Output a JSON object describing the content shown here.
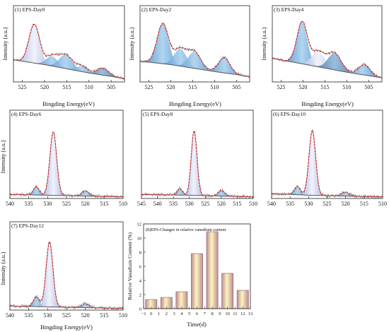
{
  "figure": {
    "colors": {
      "raw": "#8a8a8a",
      "fit": "#d42020",
      "background": "#555555",
      "peak_main": "#b8c0e6",
      "peak_sub": "#5d9fd3",
      "peak_sub2": "#4f88b8",
      "bar_top": "#f8f3b0",
      "bar_mid": "#e9c0c8",
      "bar_dark": "#c08c9a"
    }
  },
  "chart_data": [
    {
      "type": "line",
      "title": "(1) EPS-Day0",
      "xlabel": "Bingding Energy(eV)",
      "ylabel": "Intensity (a.u.)",
      "xlim": [
        527,
        502
      ],
      "x_ticks": [
        525,
        520,
        515,
        510,
        505
      ],
      "background": [
        [
          527,
          0.32
        ],
        [
          520,
          0.25
        ],
        [
          510,
          0.13
        ],
        [
          502,
          0.05
        ]
      ],
      "peaks": [
        {
          "center": 522.3,
          "height": 0.56,
          "width": 1.2,
          "color": "peak_main"
        },
        {
          "center": 518.3,
          "height": 0.14,
          "width": 1.3,
          "color": "peak_sub"
        },
        {
          "center": 515.2,
          "height": 0.2,
          "width": 1.5,
          "color": "peak_sub"
        },
        {
          "center": 511.5,
          "height": 0.08,
          "width": 1.2,
          "color": "peak_sub"
        },
        {
          "center": 506.8,
          "height": 0.1,
          "width": 1.3,
          "color": "peak_sub2"
        }
      ]
    },
    {
      "type": "line",
      "title": "(2) EPS-Day2",
      "xlabel": "Bingding Energy(eV)",
      "ylabel": "Intensity (a.u.)",
      "xlim": [
        527,
        502
      ],
      "x_ticks": [
        525,
        520,
        515,
        510,
        505
      ],
      "background": [
        [
          527,
          0.3
        ],
        [
          520,
          0.25
        ],
        [
          510,
          0.15
        ],
        [
          502,
          0.08
        ]
      ],
      "peaks": [
        {
          "center": 521.8,
          "height": 0.58,
          "width": 1.3,
          "color": "peak_sub"
        },
        {
          "center": 517.8,
          "height": 0.25,
          "width": 1.4,
          "color": "peak_sub"
        },
        {
          "center": 514.6,
          "height": 0.24,
          "width": 1.4,
          "color": "peak_sub"
        },
        {
          "center": 507.8,
          "height": 0.22,
          "width": 1.3,
          "color": "peak_sub"
        }
      ]
    },
    {
      "type": "line",
      "title": "(3) EPS-Day4",
      "xlabel": "Bingding Energy(eV)",
      "ylabel": "Intensity (a.u.)",
      "xlim": [
        527,
        502
      ],
      "x_ticks": [
        525,
        520,
        515,
        510,
        505
      ],
      "background": [
        [
          527,
          0.34
        ],
        [
          520,
          0.26
        ],
        [
          510,
          0.14
        ],
        [
          502,
          0.06
        ]
      ],
      "peaks": [
        {
          "center": 520.2,
          "height": 0.6,
          "width": 1.2,
          "color": "peak_sub"
        },
        {
          "center": 516.5,
          "height": 0.22,
          "width": 1.5,
          "color": "peak_main"
        },
        {
          "center": 512.8,
          "height": 0.24,
          "width": 1.5,
          "color": "peak_sub2"
        },
        {
          "center": 506.0,
          "height": 0.15,
          "width": 1.3,
          "color": "peak_sub"
        }
      ]
    },
    {
      "type": "line",
      "title": "(4) EPS-Day6",
      "xlabel": "",
      "ylabel": "Intensity (a.u.)",
      "xlim": [
        540,
        510
      ],
      "x_ticks": [
        540,
        535,
        530,
        525,
        520,
        515,
        510
      ],
      "background": [
        [
          540,
          0.05
        ],
        [
          530,
          0.04
        ],
        [
          520,
          0.03
        ],
        [
          510,
          0.02
        ]
      ],
      "peaks": [
        {
          "center": 533.0,
          "height": 0.1,
          "width": 0.8,
          "color": "peak_sub"
        },
        {
          "center": 528.5,
          "height": 0.78,
          "width": 0.9,
          "color": "peak_main"
        },
        {
          "center": 520.0,
          "height": 0.06,
          "width": 1.0,
          "color": "peak_sub"
        }
      ]
    },
    {
      "type": "line",
      "title": "(5) EPS-Day8",
      "xlabel": "",
      "ylabel": "",
      "xlim": [
        545,
        510
      ],
      "x_ticks": [
        545,
        540,
        535,
        530,
        525,
        520,
        515,
        510
      ],
      "background": [
        [
          545,
          0.05
        ],
        [
          530,
          0.04
        ],
        [
          520,
          0.03
        ],
        [
          510,
          0.02
        ]
      ],
      "peaks": [
        {
          "center": 533.0,
          "height": 0.08,
          "width": 0.8,
          "color": "peak_sub"
        },
        {
          "center": 528.5,
          "height": 0.8,
          "width": 0.9,
          "color": "peak_main"
        },
        {
          "center": 520.0,
          "height": 0.07,
          "width": 1.0,
          "color": "peak_sub"
        }
      ]
    },
    {
      "type": "line",
      "title": "(6) EPS-Day10",
      "xlabel": "",
      "ylabel": "",
      "xlim": [
        540,
        510
      ],
      "x_ticks": [
        540,
        535,
        530,
        525,
        520,
        515,
        510
      ],
      "background": [
        [
          540,
          0.06
        ],
        [
          530,
          0.04
        ],
        [
          520,
          0.03
        ],
        [
          510,
          0.02
        ]
      ],
      "peaks": [
        {
          "center": 533.0,
          "height": 0.1,
          "width": 0.8,
          "color": "peak_sub"
        },
        {
          "center": 529.0,
          "height": 0.8,
          "width": 0.9,
          "color": "peak_main"
        },
        {
          "center": 520.0,
          "height": 0.05,
          "width": 1.0,
          "color": "peak_sub"
        }
      ]
    },
    {
      "type": "line",
      "title": "(7) EPS-Day12",
      "xlabel": "Bingding Energy(eV)",
      "ylabel": "Intensity (a.u.)",
      "xlim": [
        540,
        510
      ],
      "x_ticks": [
        540,
        535,
        530,
        525,
        520,
        515,
        510
      ],
      "background": [
        [
          540,
          0.05
        ],
        [
          530,
          0.04
        ],
        [
          520,
          0.03
        ],
        [
          510,
          0.02
        ]
      ],
      "peaks": [
        {
          "center": 533.0,
          "height": 0.12,
          "width": 0.8,
          "color": "peak_sub"
        },
        {
          "center": 529.5,
          "height": 0.8,
          "width": 0.9,
          "color": "peak_main"
        },
        {
          "center": 520.0,
          "height": 0.05,
          "width": 1.0,
          "color": "peak_sub"
        }
      ]
    },
    {
      "type": "bar",
      "title": "(8)EPS-Changes in relative vanadium content",
      "xlabel": "Time(d)",
      "ylabel": "Relative Vanadium Content (%)",
      "x": [
        0,
        2,
        4,
        6,
        8,
        10,
        12
      ],
      "values": [
        1.3,
        1.6,
        2.4,
        7.8,
        10.9,
        5.0,
        2.6
      ],
      "xlim": [
        -1,
        13
      ],
      "ylim": [
        0,
        12
      ],
      "x_ticks": [
        -1,
        0,
        1,
        2,
        3,
        4,
        5,
        6,
        7,
        8,
        9,
        10,
        11,
        12,
        13
      ],
      "y_ticks": [
        0,
        2,
        4,
        6,
        8,
        10,
        12
      ]
    }
  ]
}
